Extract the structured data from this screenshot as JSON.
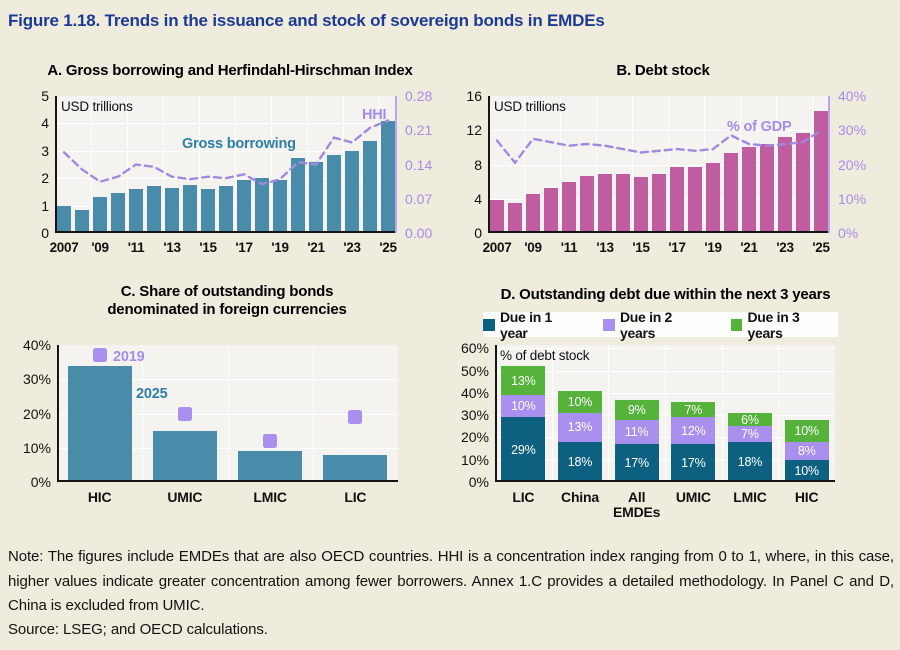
{
  "title": "Figure 1.18. Trends in the issuance and stock of sovereign bonds in EMDEs",
  "colors": {
    "background": "#f0ecdd",
    "title_blue": "#1b3a94",
    "plot_bg": "#f4f3f0",
    "gridline": "#ffffff",
    "teal_bar": "#4b8baa",
    "magenta_bar": "#c05da0",
    "purple_line": "#a08ae0",
    "purple_axis": "#b9a6ee",
    "purple_text": "#a58ce8",
    "teal_text": "#2e7fa6",
    "dark_teal": "#0e6080",
    "light_purple": "#a98fee",
    "green": "#55b23a"
  },
  "chart_data": [
    {
      "panel": "A",
      "type": "bar+line",
      "title": "A. Gross borrowing and Herfindahl-Hirschman Index",
      "unit_label": "USD trillions",
      "x_years": [
        2007,
        2008,
        2009,
        2010,
        2011,
        2012,
        2013,
        2014,
        2015,
        2016,
        2017,
        2018,
        2019,
        2020,
        2021,
        2022,
        2023,
        2024,
        2025
      ],
      "x_tick_labels": [
        "2007",
        "'09",
        "'11",
        "'13",
        "'15",
        "'17",
        "'19",
        "'21",
        "'23",
        "'25"
      ],
      "bar_series": {
        "name": "Gross borrowing",
        "color": "#4b8baa",
        "values": [
          1.0,
          0.85,
          1.3,
          1.45,
          1.6,
          1.7,
          1.65,
          1.75,
          1.6,
          1.7,
          1.95,
          2.0,
          1.95,
          2.75,
          2.6,
          2.85,
          3.0,
          3.35,
          4.1
        ]
      },
      "line_series": {
        "name": "HHI",
        "color": "#a08ae0",
        "axis": "right",
        "values": [
          0.165,
          0.13,
          0.105,
          0.115,
          0.14,
          0.135,
          0.115,
          0.11,
          0.115,
          0.112,
          0.12,
          0.1,
          0.11,
          0.145,
          0.14,
          0.195,
          0.185,
          0.215,
          0.23
        ]
      },
      "left_axis": {
        "ticks": [
          5,
          4,
          3,
          2,
          1,
          0
        ],
        "max": 5
      },
      "right_axis": {
        "tick_labels": [
          "0.28",
          "0.21",
          "0.14",
          "0.07",
          "0.00"
        ],
        "max": 0.28
      }
    },
    {
      "panel": "B",
      "type": "bar+line",
      "title": "B. Debt stock",
      "unit_label": "USD trillions",
      "x_years": [
        2007,
        2008,
        2009,
        2010,
        2011,
        2012,
        2013,
        2014,
        2015,
        2016,
        2017,
        2018,
        2019,
        2020,
        2021,
        2022,
        2023,
        2024,
        2025
      ],
      "x_tick_labels": [
        "2007",
        "'09",
        "'11",
        "'13",
        "'15",
        "'17",
        "'19",
        "'21",
        "'23",
        "'25"
      ],
      "bar_series": {
        "name": "Debt stock",
        "color": "#c05da0",
        "values": [
          3.9,
          3.5,
          4.6,
          5.3,
          5.9,
          6.7,
          6.9,
          6.9,
          6.5,
          6.9,
          7.7,
          7.7,
          8.2,
          9.4,
          10.1,
          10.4,
          11.2,
          11.7,
          14.3
        ]
      },
      "line_series": {
        "name": "% of GDP",
        "color": "#a08ae0",
        "axis": "right",
        "values": [
          27,
          20.5,
          27.5,
          26.5,
          25.5,
          26,
          25.5,
          24.5,
          23.5,
          24,
          24.5,
          24,
          24.5,
          28.5,
          26,
          25.5,
          26,
          26.5,
          30
        ]
      },
      "left_axis": {
        "ticks": [
          16,
          12,
          8,
          4,
          0
        ],
        "max": 16
      },
      "right_axis": {
        "tick_labels": [
          "40%",
          "30%",
          "20%",
          "10%",
          "0%"
        ],
        "max": 40
      }
    },
    {
      "panel": "C",
      "type": "bar+markers",
      "title_lines": [
        "C. Share of outstanding bonds",
        "denominated in foreign currencies"
      ],
      "categories": [
        "HIC",
        "UMIC",
        "LMIC",
        "LIC"
      ],
      "bar_series": {
        "name": "2025",
        "color": "#4b8baa",
        "values": [
          34,
          15,
          9,
          8
        ]
      },
      "marker_series": {
        "name": "2019",
        "color": "#a98fee",
        "values": [
          37,
          20,
          12,
          19
        ]
      },
      "left_axis": {
        "tick_labels": [
          "40%",
          "30%",
          "20%",
          "10%",
          "0%"
        ],
        "ticks": [
          40,
          30,
          20,
          10,
          0
        ],
        "max": 40
      }
    },
    {
      "panel": "D",
      "type": "stacked-bar",
      "title": "D. Outstanding debt due within the next 3 years",
      "unit_label": "% of debt stock",
      "categories": [
        "LIC",
        "China",
        "All EMDEs",
        "UMIC",
        "LMIC",
        "HIC"
      ],
      "series": [
        {
          "name": "Due in 1 year",
          "color": "#0e6080",
          "values": [
            29,
            18,
            17,
            17,
            18,
            10
          ]
        },
        {
          "name": "Due in 2 years",
          "color": "#a98fee",
          "values": [
            10,
            13,
            11,
            12,
            7,
            8
          ]
        },
        {
          "name": "Due in 3 years",
          "color": "#55b23a",
          "values": [
            13,
            10,
            9,
            7,
            6,
            10
          ]
        }
      ],
      "left_axis": {
        "tick_labels": [
          "60%",
          "50%",
          "40%",
          "30%",
          "20%",
          "10%",
          "0%"
        ],
        "ticks": [
          60,
          50,
          40,
          30,
          20,
          10,
          0
        ],
        "max": 61.5
      }
    }
  ],
  "note": "Note: The figures include EMDEs that are also OECD countries. HHI is a concentration index ranging from 0 to 1, where, in this case, higher values indicate greater concentration among fewer borrowers. Annex 1.C provides a detailed methodology. In Panel C and D, China is excluded from UMIC.",
  "source": "Source: LSEG; and OECD calculations."
}
